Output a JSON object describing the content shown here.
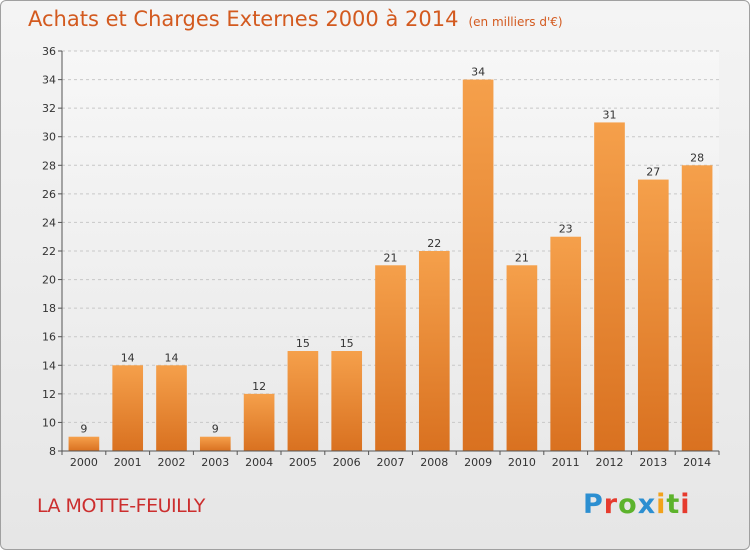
{
  "header": {
    "title": "Achats et Charges Externes 2000 à 2014",
    "subtitle": "(en milliers d'€)"
  },
  "footer": {
    "commune": "LA MOTTE-FEUILLY",
    "logo_letters": [
      "P",
      "r",
      "o",
      "x",
      "i",
      "t",
      "i"
    ]
  },
  "colors": {
    "bar_top": "#f5a04b",
    "bar_bottom": "#d97120",
    "title": "#d35a1f",
    "commune": "#cc2e2e"
  },
  "chart_data": {
    "type": "bar",
    "title": "Achats et Charges Externes 2000 à 2014",
    "subtitle": "(en milliers d'€)",
    "categories": [
      "2000",
      "2001",
      "2002",
      "2003",
      "2004",
      "2005",
      "2006",
      "2007",
      "2008",
      "2009",
      "2010",
      "2011",
      "2012",
      "2013",
      "2014"
    ],
    "values": [
      9,
      14,
      14,
      9,
      12,
      15,
      15,
      21,
      22,
      34,
      21,
      23,
      31,
      27,
      28
    ],
    "ylim": [
      8,
      36
    ],
    "yticks": [
      8,
      10,
      12,
      14,
      16,
      18,
      20,
      22,
      24,
      26,
      28,
      30,
      32,
      34,
      36
    ],
    "grid": "horizontal-dashed",
    "data_labels": true
  }
}
